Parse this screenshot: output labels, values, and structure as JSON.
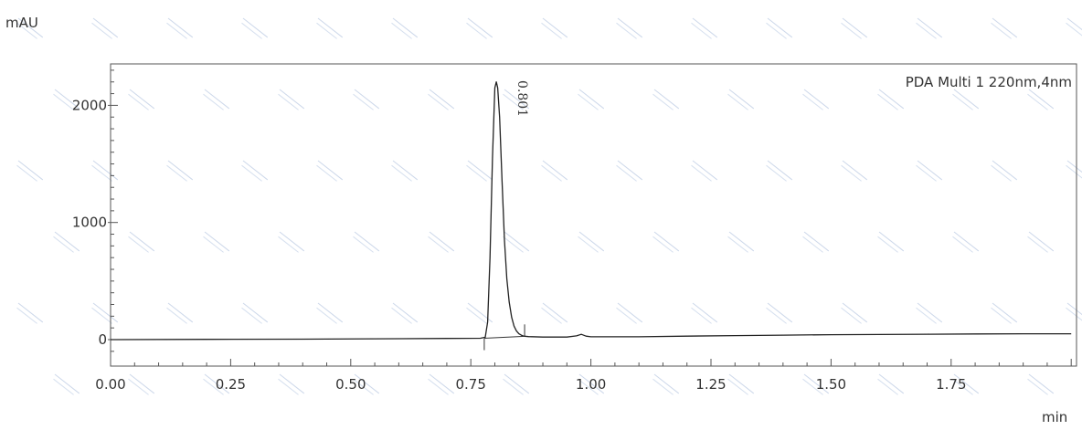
{
  "chart_data": {
    "type": "line",
    "ylabel": "mAU",
    "xlabel": "min",
    "channel_label": "PDA Multi 1 220nm,4nm",
    "xlim": [
      0.0,
      2.0
    ],
    "ylim": [
      -110,
      2350
    ],
    "x_ticks": [
      "0.00",
      "0.25",
      "0.50",
      "0.75",
      "1.00",
      "1.25",
      "1.50",
      "1.75"
    ],
    "x_tick_values": [
      0.0,
      0.25,
      0.5,
      0.75,
      1.0,
      1.25,
      1.5,
      1.75
    ],
    "y_ticks": [
      "0",
      "1000",
      "2000"
    ],
    "y_tick_values": [
      0,
      1000,
      2000
    ],
    "grid": false,
    "series": [
      {
        "color": "#222222",
        "points": [
          [
            0.0,
            0
          ],
          [
            0.2,
            2
          ],
          [
            0.4,
            4
          ],
          [
            0.6,
            8
          ],
          [
            0.7,
            10
          ],
          [
            0.77,
            12
          ],
          [
            0.78,
            20
          ],
          [
            0.785,
            150
          ],
          [
            0.79,
            700
          ],
          [
            0.795,
            1550
          ],
          [
            0.8,
            2150
          ],
          [
            0.803,
            2200
          ],
          [
            0.806,
            2150
          ],
          [
            0.81,
            1900
          ],
          [
            0.815,
            1350
          ],
          [
            0.82,
            850
          ],
          [
            0.825,
            520
          ],
          [
            0.83,
            320
          ],
          [
            0.835,
            190
          ],
          [
            0.84,
            115
          ],
          [
            0.845,
            75
          ],
          [
            0.85,
            50
          ],
          [
            0.855,
            38
          ],
          [
            0.86,
            30
          ],
          [
            0.87,
            26
          ],
          [
            0.9,
            22
          ],
          [
            0.95,
            22
          ],
          [
            0.97,
            32
          ],
          [
            0.98,
            45
          ],
          [
            0.99,
            30
          ],
          [
            1.0,
            24
          ],
          [
            1.1,
            24
          ],
          [
            1.2,
            30
          ],
          [
            1.3,
            34
          ],
          [
            1.4,
            38
          ],
          [
            1.5,
            42
          ],
          [
            1.6,
            44
          ],
          [
            1.7,
            46
          ],
          [
            1.8,
            48
          ],
          [
            1.9,
            50
          ],
          [
            2.0,
            50
          ]
        ]
      }
    ],
    "peaks": [
      {
        "label": "0.801",
        "rt": 0.801,
        "height": 2200
      }
    ],
    "integration_markers": [
      0.778,
      0.862
    ]
  }
}
